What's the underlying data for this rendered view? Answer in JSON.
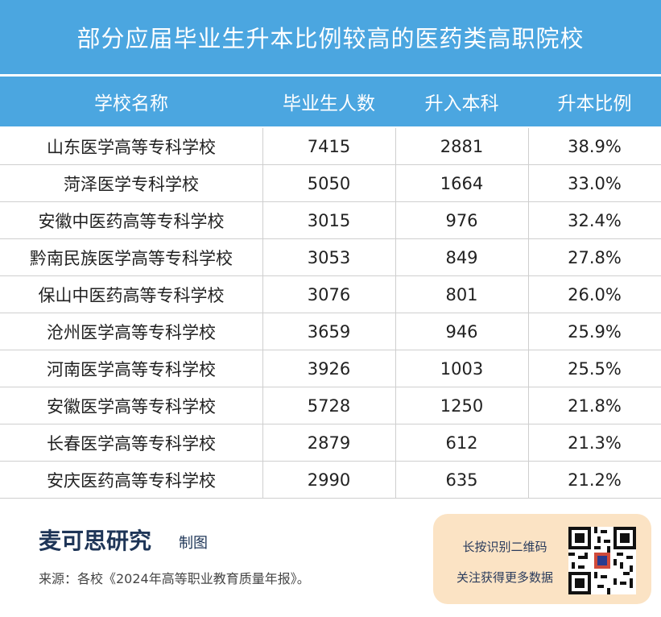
{
  "title": "部分应届毕业生升本比例较高的医药类高职院校",
  "chart_data": {
    "type": "table",
    "columns": [
      "学校名称",
      "毕业生人数",
      "升入本科",
      "升本比例"
    ],
    "rows": [
      [
        "山东医学高等专科学校",
        "7415",
        "2881",
        "38.9%"
      ],
      [
        "菏泽医学专科学校",
        "5050",
        "1664",
        "33.0%"
      ],
      [
        "安徽中医药高等专科学校",
        "3015",
        "976",
        "32.4%"
      ],
      [
        "黔南民族医学高等专科学校",
        "3053",
        "849",
        "27.8%"
      ],
      [
        "保山中医药高等专科学校",
        "3076",
        "801",
        "26.0%"
      ],
      [
        "沧州医学高等专科学校",
        "3659",
        "946",
        "25.9%"
      ],
      [
        "河南医学高等专科学校",
        "3926",
        "1003",
        "25.5%"
      ],
      [
        "安徽医学高等专科学校",
        "5728",
        "1250",
        "21.8%"
      ],
      [
        "长春医学高等专科学校",
        "2879",
        "612",
        "21.3%"
      ],
      [
        "安庆医药高等专科学校",
        "2990",
        "635",
        "21.2%"
      ]
    ]
  },
  "footer": {
    "brand": "麦可思研究",
    "brand_sub": "制图",
    "source": "来源：各校《2024年高等职业教育质量年报》。",
    "qr_line1": "长按识别二维码",
    "qr_line2": "关注获得更多数据"
  },
  "colors": {
    "header_bg": "#4ba6e0",
    "brand_text": "#1e3557",
    "qr_box_bg": "#fbe3c4"
  }
}
